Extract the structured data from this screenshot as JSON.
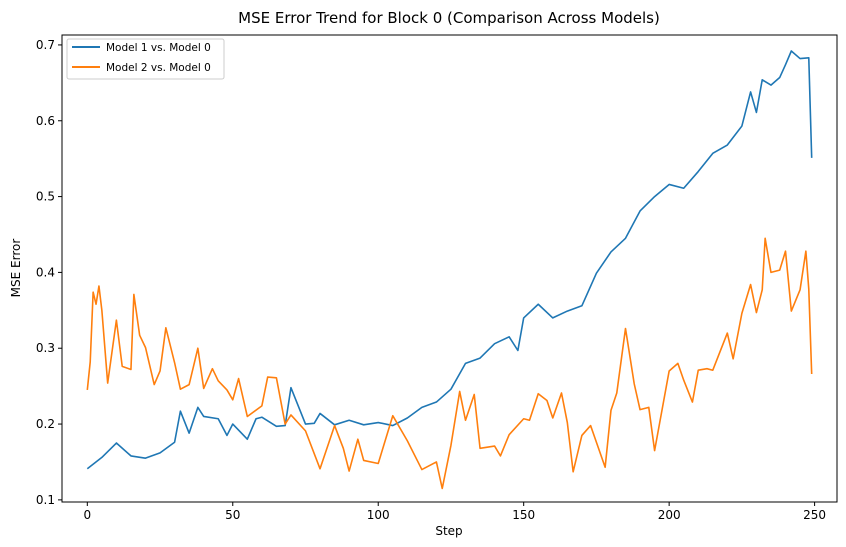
{
  "chart_data": {
    "type": "line",
    "title": "MSE Error Trend for Block 0 (Comparison Across Models)",
    "xlabel": "Step",
    "ylabel": "MSE Error",
    "xlim": [
      -8.7,
      257.7
    ],
    "ylim": [
      0.0972,
      0.7131
    ],
    "xticks": [
      0,
      50,
      100,
      150,
      200,
      250
    ],
    "yticks": [
      0.1,
      0.2,
      0.3,
      0.4,
      0.5,
      0.6,
      0.7
    ],
    "grid": false,
    "legend_position": "top-left",
    "series": [
      {
        "name": "Model 1 vs. Model 0",
        "color": "#1f77b4",
        "x": [
          0,
          5,
          10,
          15,
          20,
          25,
          30,
          32,
          35,
          38,
          40,
          45,
          48,
          50,
          55,
          58,
          60,
          65,
          68,
          70,
          75,
          78,
          80,
          85,
          90,
          95,
          100,
          105,
          110,
          115,
          120,
          125,
          130,
          135,
          140,
          145,
          148,
          150,
          155,
          160,
          165,
          170,
          175,
          180,
          185,
          190,
          195,
          200,
          205,
          210,
          215,
          220,
          225,
          228,
          230,
          232,
          235,
          238,
          240,
          242,
          245,
          248,
          249
        ],
        "values": [
          0.141,
          0.156,
          0.175,
          0.158,
          0.155,
          0.162,
          0.176,
          0.217,
          0.188,
          0.222,
          0.21,
          0.207,
          0.185,
          0.2,
          0.18,
          0.207,
          0.209,
          0.197,
          0.198,
          0.248,
          0.2,
          0.201,
          0.214,
          0.199,
          0.205,
          0.199,
          0.202,
          0.198,
          0.208,
          0.222,
          0.229,
          0.246,
          0.28,
          0.287,
          0.306,
          0.315,
          0.297,
          0.34,
          0.358,
          0.34,
          0.349,
          0.356,
          0.399,
          0.427,
          0.445,
          0.481,
          0.5,
          0.516,
          0.511,
          0.533,
          0.557,
          0.568,
          0.593,
          0.638,
          0.611,
          0.654,
          0.647,
          0.657,
          0.674,
          0.692,
          0.682,
          0.683,
          0.551
        ]
      },
      {
        "name": "Model 2 vs. Model 0",
        "color": "#ff7f0e",
        "x": [
          0,
          1,
          2,
          3,
          4,
          5,
          7,
          10,
          12,
          15,
          16,
          18,
          20,
          23,
          25,
          27,
          30,
          32,
          35,
          38,
          40,
          43,
          45,
          48,
          50,
          52,
          55,
          60,
          62,
          65,
          68,
          70,
          75,
          80,
          85,
          88,
          90,
          93,
          95,
          100,
          105,
          110,
          115,
          120,
          122,
          125,
          128,
          130,
          133,
          135,
          140,
          142,
          145,
          150,
          152,
          155,
          158,
          160,
          163,
          165,
          167,
          170,
          173,
          175,
          178,
          180,
          182,
          185,
          188,
          190,
          193,
          195,
          200,
          203,
          205,
          208,
          210,
          213,
          215,
          220,
          222,
          225,
          228,
          230,
          232,
          233,
          235,
          238,
          240,
          242,
          245,
          247,
          248,
          249
        ],
        "values": [
          0.245,
          0.282,
          0.374,
          0.358,
          0.382,
          0.35,
          0.254,
          0.337,
          0.276,
          0.272,
          0.371,
          0.317,
          0.301,
          0.252,
          0.27,
          0.327,
          0.281,
          0.246,
          0.252,
          0.3,
          0.247,
          0.273,
          0.257,
          0.245,
          0.232,
          0.26,
          0.21,
          0.224,
          0.262,
          0.261,
          0.2,
          0.212,
          0.191,
          0.141,
          0.198,
          0.168,
          0.138,
          0.18,
          0.152,
          0.148,
          0.211,
          0.178,
          0.14,
          0.15,
          0.115,
          0.172,
          0.243,
          0.205,
          0.239,
          0.168,
          0.171,
          0.158,
          0.186,
          0.207,
          0.205,
          0.24,
          0.231,
          0.208,
          0.241,
          0.202,
          0.137,
          0.185,
          0.198,
          0.176,
          0.143,
          0.218,
          0.241,
          0.326,
          0.253,
          0.219,
          0.222,
          0.165,
          0.27,
          0.28,
          0.258,
          0.229,
          0.271,
          0.273,
          0.271,
          0.32,
          0.286,
          0.346,
          0.384,
          0.347,
          0.377,
          0.445,
          0.4,
          0.403,
          0.428,
          0.349,
          0.377,
          0.428,
          0.378,
          0.266
        ]
      }
    ]
  }
}
